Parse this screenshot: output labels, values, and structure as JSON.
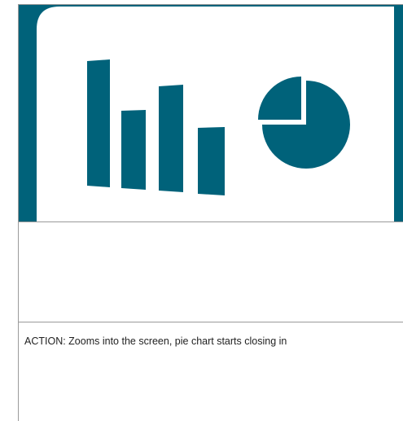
{
  "action": "ACTION: Zooms into the screen, pie chart starts closing in"
}
